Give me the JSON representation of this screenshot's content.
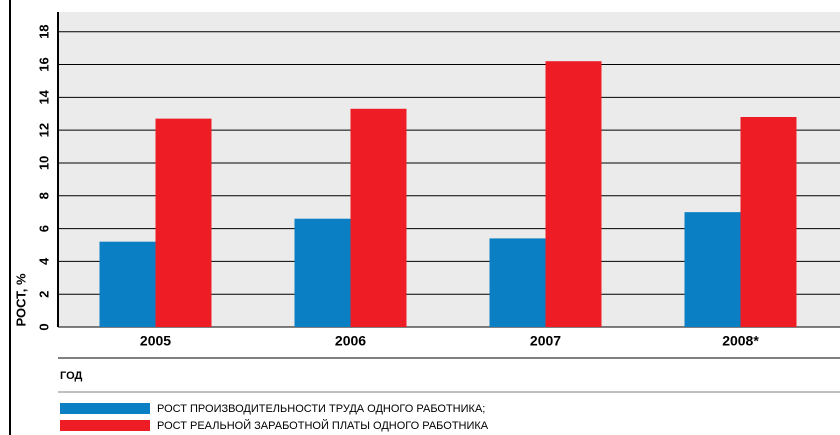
{
  "chart_data": {
    "type": "bar",
    "y_label": "РОСТ, %",
    "x_label": "ГОД",
    "categories": [
      "2005",
      "2006",
      "2007",
      "2008*"
    ],
    "series": [
      {
        "name": "РОСТ ПРОИЗВОДИТЕЛЬНОСТИ ТРУДА ОДНОГО РАБОТНИКА;",
        "color": "#0a7fc3",
        "values": [
          5.2,
          6.6,
          5.4,
          7.0
        ]
      },
      {
        "name": "РОСТ РЕАЛЬНОЙ ЗАРАБОТНОЙ ПЛАТЫ ОДНОГО РАБОТНИКА",
        "color": "#ee1c25",
        "values": [
          12.7,
          13.3,
          16.2,
          12.8
        ]
      }
    ],
    "ylim": [
      0,
      19.2
    ],
    "yticks": [
      0,
      2,
      4,
      6,
      8,
      10,
      12,
      14,
      16,
      18
    ],
    "grid": true
  }
}
